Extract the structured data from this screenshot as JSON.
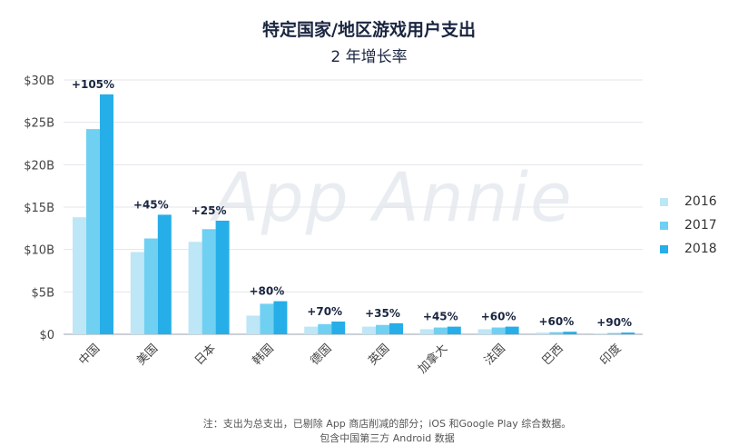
{
  "header": {
    "title": "特定国家/地区游戏用户支出",
    "subtitle": "2 年增长率"
  },
  "watermark": "App Annie",
  "chart_data": {
    "type": "bar",
    "categories": [
      "中国",
      "美国",
      "日本",
      "韩国",
      "德国",
      "英国",
      "加拿大",
      "法国",
      "巴西",
      "印度"
    ],
    "series": [
      {
        "name": "2016",
        "color": "#bde6f7",
        "values": [
          13.8,
          9.7,
          10.9,
          2.2,
          0.9,
          0.9,
          0.6,
          0.6,
          0.2,
          0.1
        ]
      },
      {
        "name": "2017",
        "color": "#6fd0f2",
        "values": [
          24.2,
          11.3,
          12.4,
          3.6,
          1.2,
          1.1,
          0.8,
          0.8,
          0.25,
          0.15
        ]
      },
      {
        "name": "2018",
        "color": "#26aee8",
        "values": [
          28.3,
          14.1,
          13.4,
          3.9,
          1.5,
          1.3,
          0.9,
          0.9,
          0.3,
          0.2
        ]
      }
    ],
    "growth_labels": [
      "+105%",
      "+45%",
      "+25%",
      "+80%",
      "+70%",
      "+35%",
      "+45%",
      "+60%",
      "+60%",
      "+90%"
    ],
    "y_ticks": [
      "$0",
      "$5B",
      "$10B",
      "$15B",
      "$20B",
      "$25B",
      "$30B"
    ],
    "y_tick_values": [
      0,
      5,
      10,
      15,
      20,
      25,
      30
    ],
    "ylim": [
      0,
      30
    ],
    "grid": true,
    "legend_position": "right"
  },
  "footnote": {
    "line1": "注：支出为总支出，已剔除 App 商店削减的部分；iOS 和Google Play 综合数据。",
    "line2": "包含中国第三方 Android 数据"
  }
}
